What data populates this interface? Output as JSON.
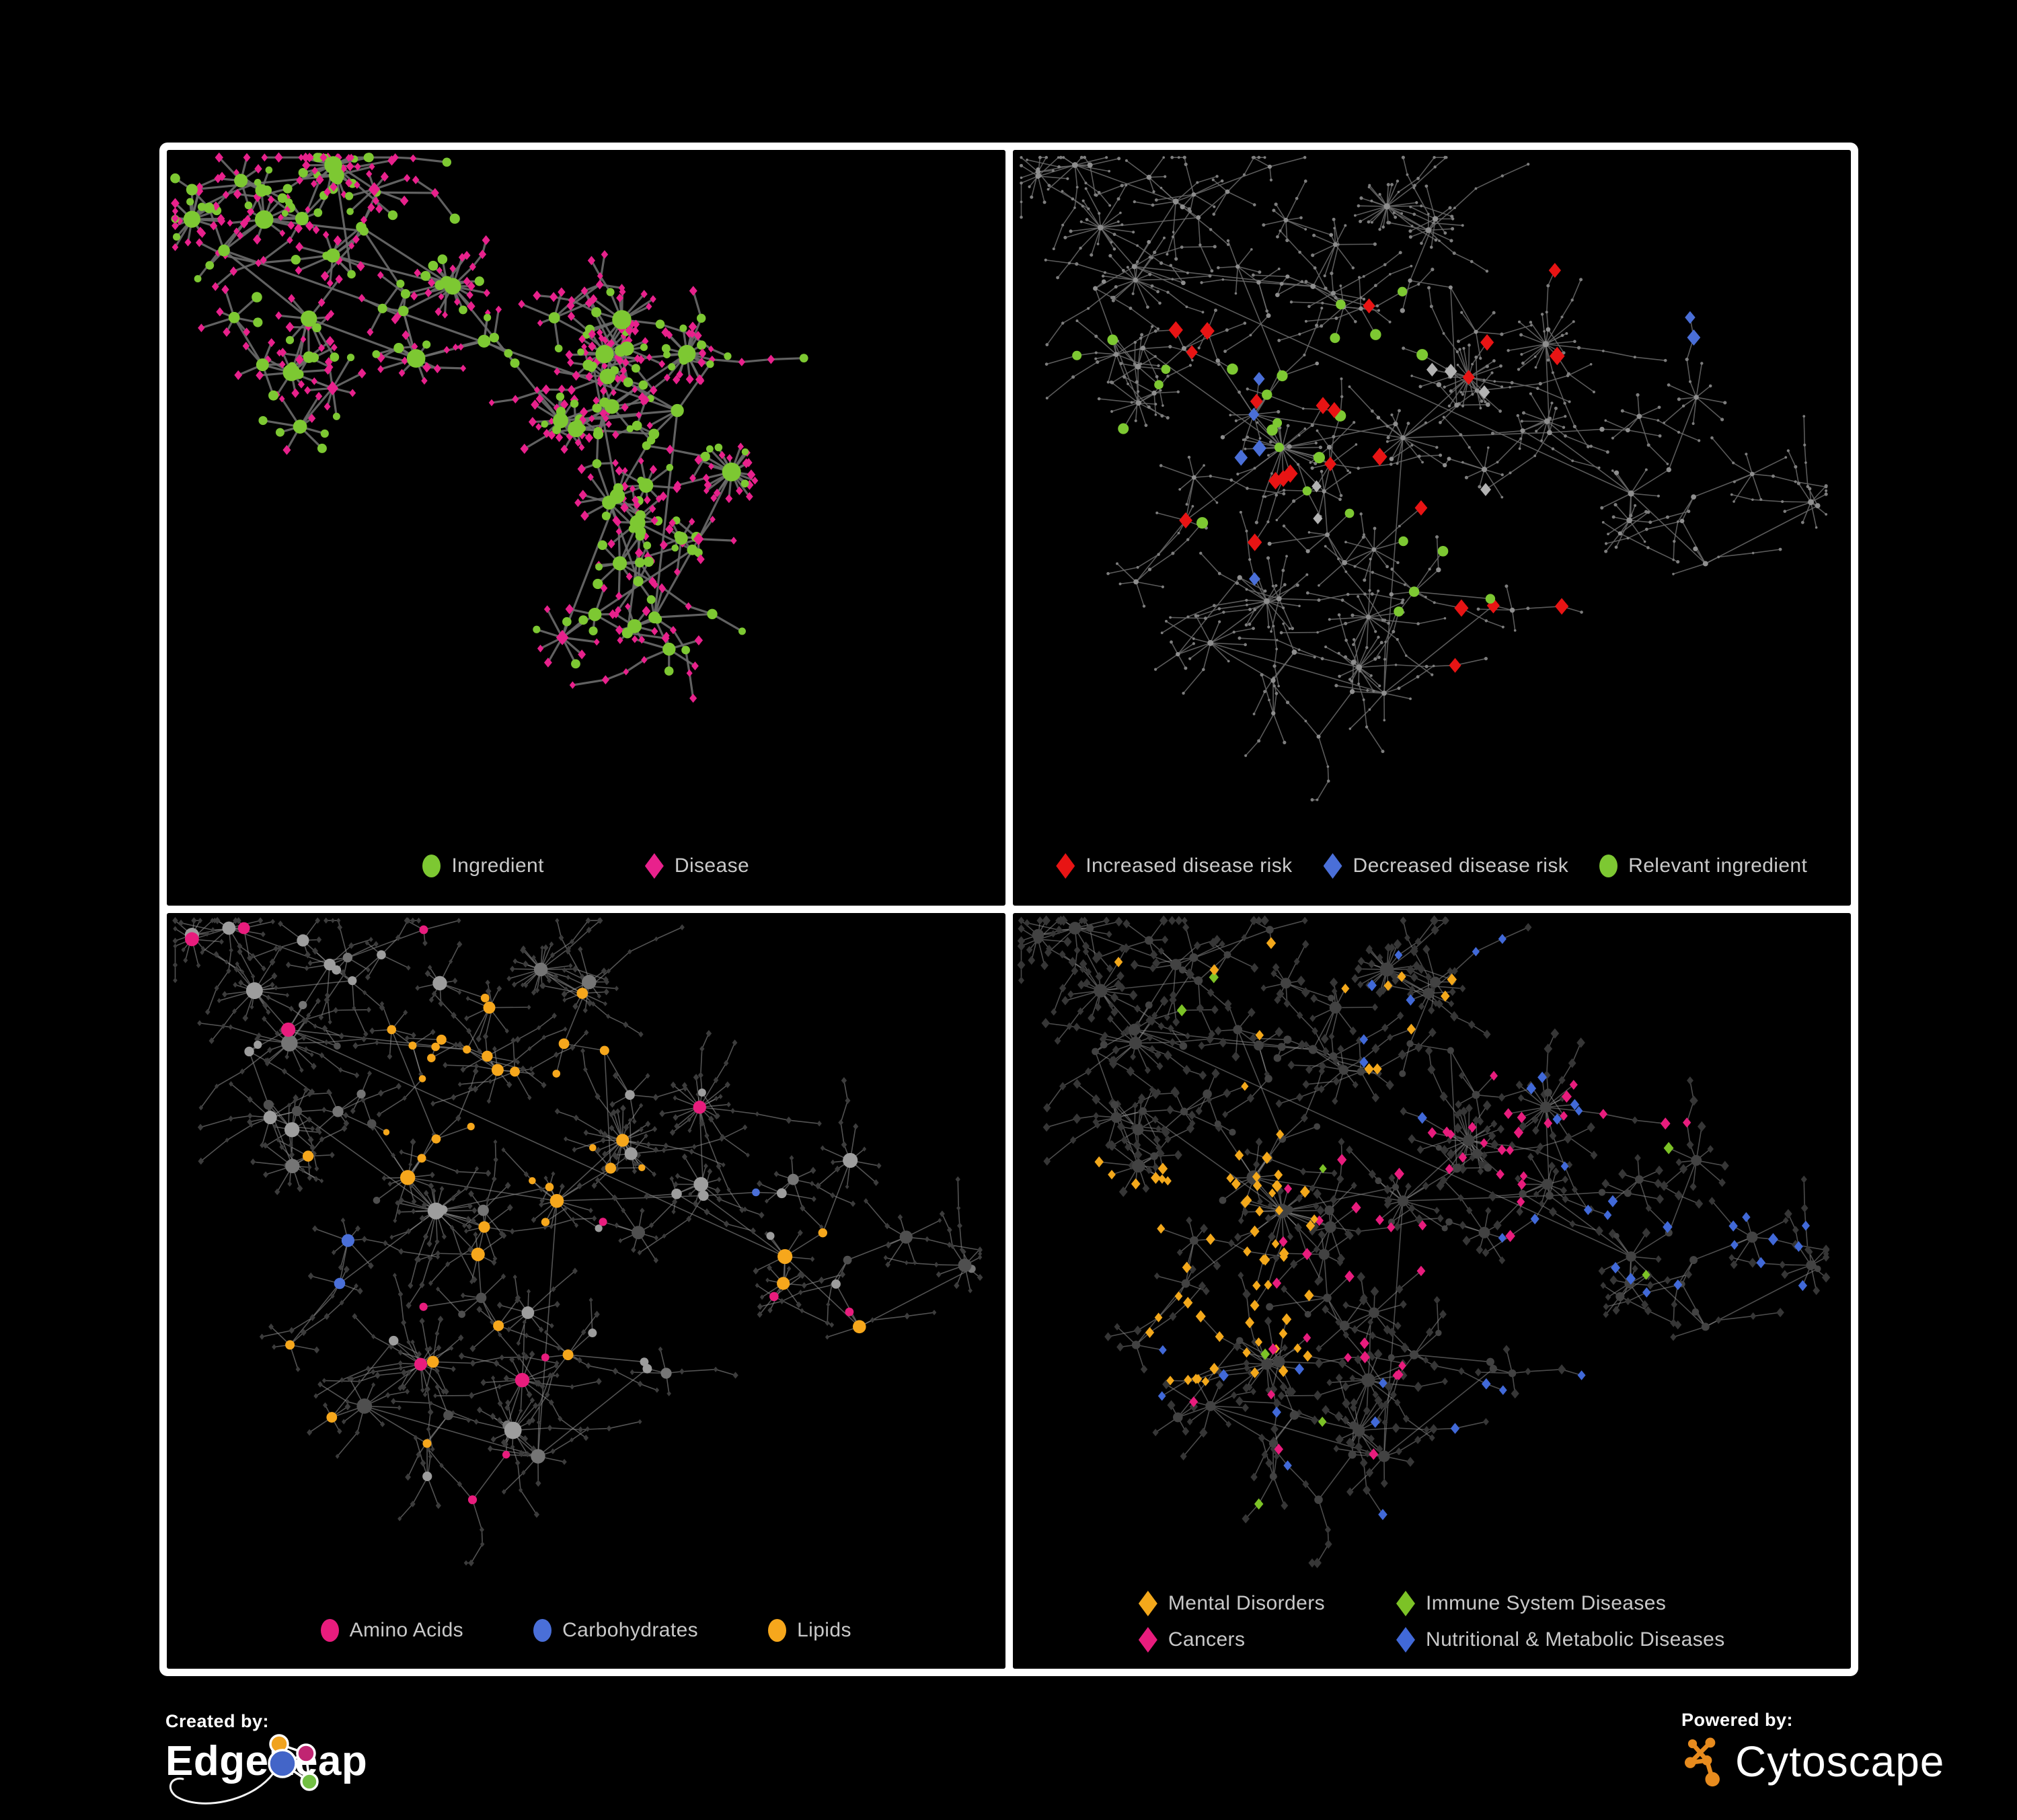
{
  "figure": {
    "background": "#000000",
    "frame_color": "#ffffff"
  },
  "panels": [
    {
      "id": "ingredient-disease-network",
      "legend": [
        {
          "label": "Ingredient",
          "shape": "circle",
          "color": "#7dc832"
        },
        {
          "label": "Disease",
          "shape": "diamond",
          "color": "#e8218c"
        }
      ],
      "topology": "own",
      "style": {
        "edge": {
          "color": "#6b6b6b",
          "width": 3.2,
          "opacity": 0.9
        },
        "hub": {
          "r": [
            5,
            13
          ],
          "variants": [
            {
              "color": "#7dc832",
              "shape": "circle",
              "w": 0.86
            },
            {
              "color": "#e8218c",
              "shape": "diamond",
              "w": 0.14
            }
          ]
        },
        "leaf": {
          "size": 6.5,
          "variants": [
            {
              "color": "#e8218c",
              "shape": "diamond",
              "w": 0.78
            },
            {
              "color": "#7dc832",
              "shape": "circle",
              "w": 0.22
            }
          ]
        },
        "highlights": []
      }
    },
    {
      "id": "disease-risk-network",
      "legend": [
        {
          "label": "Increased disease risk",
          "shape": "diamond",
          "color": "#e81414"
        },
        {
          "label": "Decreased disease risk",
          "shape": "diamond",
          "color": "#4a6fd8"
        },
        {
          "label": "Relevant ingredient",
          "shape": "circle",
          "color": "#7dc832"
        }
      ],
      "topology": "shared",
      "style": {
        "edge": {
          "color": "#6a6a6a",
          "width": 1.6,
          "opacity": 0.85
        },
        "hub": {
          "r": [
            3.2,
            4.2
          ],
          "variants": [
            {
              "color": "#8e8e8e",
              "shape": "circle",
              "w": 1
            }
          ]
        },
        "leaf": {
          "size": 2.2,
          "variants": [
            {
              "color": "#7e7e7e",
              "shape": "circle",
              "w": 1
            }
          ]
        },
        "highlights": [
          {
            "shape": "diamond",
            "color": "#e81414",
            "size": 12,
            "on": "any",
            "count": 16,
            "region": [
              0.18,
              0.2,
              0.55,
              0.52
            ]
          },
          {
            "shape": "diamond",
            "color": "#e81414",
            "size": 12,
            "on": "any",
            "count": 4,
            "region": [
              0.45,
              0.52,
              0.72,
              0.72
            ]
          },
          {
            "shape": "diamond",
            "color": "#e81414",
            "size": 12,
            "on": "any",
            "count": 3,
            "region": [
              0.55,
              0.1,
              0.78,
              0.3
            ]
          },
          {
            "shape": "diamond",
            "color": "#e81414",
            "size": 11,
            "on": "any",
            "count": 2,
            "region": [
              0.5,
              0.7,
              0.68,
              0.84
            ]
          },
          {
            "shape": "diamond",
            "color": "#4a6fd8",
            "size": 11,
            "on": "any",
            "count": 2,
            "region": [
              0.8,
              0.14,
              0.95,
              0.26
            ]
          },
          {
            "shape": "diamond",
            "color": "#4a6fd8",
            "size": 11,
            "on": "any",
            "count": 4,
            "region": [
              0.17,
              0.28,
              0.33,
              0.48
            ]
          },
          {
            "shape": "diamond",
            "color": "#4a6fd8",
            "size": 11,
            "on": "any",
            "count": 1,
            "region": [
              0.28,
              0.48,
              0.38,
              0.58
            ]
          },
          {
            "shape": "diamond",
            "color": "#b3b3b3",
            "size": 10,
            "on": "any",
            "count": 6,
            "region": [
              0.22,
              0.28,
              0.58,
              0.56
            ]
          },
          {
            "shape": "circle",
            "color": "#7dc832",
            "size": 7.5,
            "on": "any",
            "count": 18,
            "region": [
              0.14,
              0.18,
              0.5,
              0.5
            ]
          },
          {
            "shape": "circle",
            "color": "#7dc832",
            "size": 7,
            "on": "any",
            "count": 5,
            "region": [
              0.45,
              0.45,
              0.72,
              0.66
            ]
          },
          {
            "shape": "circle",
            "color": "#7dc832",
            "size": 7,
            "on": "any",
            "count": 3,
            "region": [
              0.05,
              0.25,
              0.15,
              0.6
            ]
          }
        ]
      }
    },
    {
      "id": "nutrient-class-network",
      "legend": [
        {
          "label": "Amino Acids",
          "shape": "circle",
          "color": "#e81c7d"
        },
        {
          "label": "Carbohydrates",
          "shape": "circle",
          "color": "#4a6fd8"
        },
        {
          "label": "Lipids",
          "shape": "circle",
          "color": "#f6a71c"
        }
      ],
      "topology": "shared",
      "style": {
        "edge": {
          "color": "#8a8a8a",
          "width": 1.6,
          "opacity": 0.6
        },
        "hub": {
          "r": [
            5,
            12
          ],
          "variants": [
            {
              "color": "#9d9d9d",
              "shape": "circle",
              "w": 0.55
            },
            {
              "color": "#757575",
              "shape": "circle",
              "w": 0.28
            },
            {
              "color": "#4f4f4f",
              "shape": "circle",
              "w": 0.17
            }
          ]
        },
        "leaf": {
          "size": 4.5,
          "variants": [
            {
              "color": "#3c3c3c",
              "shape": "diamond",
              "w": 1
            }
          ]
        },
        "highlights": [
          {
            "shape": "circle",
            "color": "#f6a71c",
            "size": 0,
            "on": "hub",
            "count": 26,
            "region": [
              0.25,
              0.1,
              0.55,
              0.38
            ]
          },
          {
            "shape": "circle",
            "color": "#f6a71c",
            "size": 0,
            "on": "hub",
            "count": 16,
            "region": [
              0.08,
              0.3,
              0.85,
              0.78
            ]
          },
          {
            "shape": "circle",
            "color": "#4a6fd8",
            "size": 0,
            "on": "hub",
            "count": 8,
            "region": [
              0.28,
              0.12,
              0.52,
              0.35
            ]
          },
          {
            "shape": "circle",
            "color": "#4a6fd8",
            "size": 0,
            "on": "hub",
            "count": 3,
            "region": [
              0.1,
              0.35,
              0.9,
              0.7
            ]
          },
          {
            "shape": "circle",
            "color": "#e81c7d",
            "size": 0,
            "on": "hub",
            "count": 9,
            "region": [
              0.05,
              0.4,
              0.85,
              0.85
            ]
          },
          {
            "shape": "circle",
            "color": "#e81c7d",
            "size": 0,
            "on": "hub",
            "count": 5,
            "region": [
              0.02,
              0.02,
              0.95,
              0.4
            ]
          }
        ]
      }
    },
    {
      "id": "disease-class-network",
      "legend": [
        {
          "label": "Mental Disorders",
          "shape": "diamond",
          "color": "#f3a81b"
        },
        {
          "label": "Immune System Diseases",
          "shape": "diamond",
          "color": "#7cc226"
        },
        {
          "label": "Cancers",
          "shape": "diamond",
          "color": "#e81c7d"
        },
        {
          "label": "Nutritional & Metabolic Diseases",
          "shape": "diamond",
          "color": "#4169d8"
        }
      ],
      "topology": "shared",
      "style": {
        "edge": {
          "color": "#8a8a8a",
          "width": 1.6,
          "opacity": 0.55
        },
        "hub": {
          "r": [
            4.5,
            9.5
          ],
          "variants": [
            {
              "color": "#424242",
              "shape": "circle",
              "w": 1
            }
          ]
        },
        "leaf": {
          "size": 6.5,
          "variants": [
            {
              "color": "#363636",
              "shape": "diamond",
              "w": 1
            }
          ]
        },
        "highlights": [
          {
            "shape": "diamond",
            "color": "#f3a81b",
            "size": 8,
            "on": "leaf",
            "count": 60,
            "region": [
              0.08,
              0.32,
              0.36,
              0.62
            ]
          },
          {
            "shape": "diamond",
            "color": "#f3a81b",
            "size": 8,
            "on": "leaf",
            "count": 14,
            "region": [
              0.1,
              0.02,
              0.55,
              0.3
            ]
          },
          {
            "shape": "diamond",
            "color": "#e81c7d",
            "size": 8,
            "on": "leaf",
            "count": 34,
            "region": [
              0.3,
              0.28,
              0.62,
              0.6
            ]
          },
          {
            "shape": "diamond",
            "color": "#e81c7d",
            "size": 8,
            "on": "leaf",
            "count": 10,
            "region": [
              0.55,
              0.06,
              0.95,
              0.3
            ]
          },
          {
            "shape": "diamond",
            "color": "#e81c7d",
            "size": 8,
            "on": "leaf",
            "count": 6,
            "region": [
              0.2,
              0.6,
              0.7,
              0.9
            ]
          },
          {
            "shape": "diamond",
            "color": "#4169d8",
            "size": 8,
            "on": "leaf",
            "count": 22,
            "region": [
              0.55,
              0.3,
              0.95,
              0.68
            ]
          },
          {
            "shape": "diamond",
            "color": "#4169d8",
            "size": 8,
            "on": "leaf",
            "count": 12,
            "region": [
              0.4,
              0.02,
              0.95,
              0.3
            ]
          },
          {
            "shape": "diamond",
            "color": "#4169d8",
            "size": 8,
            "on": "leaf",
            "count": 10,
            "region": [
              0.05,
              0.55,
              0.6,
              0.95
            ]
          },
          {
            "shape": "diamond",
            "color": "#4169d8",
            "size": 8,
            "on": "leaf",
            "count": 6,
            "region": [
              0.55,
              0.02,
              0.75,
              0.12
            ]
          },
          {
            "shape": "diamond",
            "color": "#7cc226",
            "size": 8,
            "on": "leaf",
            "count": 8,
            "region": [
              0.1,
              0.05,
              0.9,
              0.8
            ]
          }
        ]
      }
    }
  ],
  "topologies": {
    "own": {
      "seed": 13,
      "clusters": 9,
      "hubs": 95,
      "spread": 0.13,
      "extra": 0.5,
      "maxLeaves": 10,
      "burst": 0.05,
      "chain": 0.08
    },
    "shared": {
      "seed": 7,
      "clusters": 12,
      "hubs": 120,
      "spread": 0.16,
      "extra": 0.22,
      "maxLeaves": 10,
      "burst": 0.05,
      "chain": 0.3
    }
  },
  "footer": {
    "created_by": "Created by:",
    "brand": "EdgeLeap",
    "powered_by": "Powered by:",
    "engine": "Cytoscape",
    "brand_colors": {
      "orange": "#f0a31f",
      "pink": "#c02572",
      "blue": "#4365c8",
      "green": "#72bf44"
    },
    "engine_color": "#e78b1e"
  }
}
